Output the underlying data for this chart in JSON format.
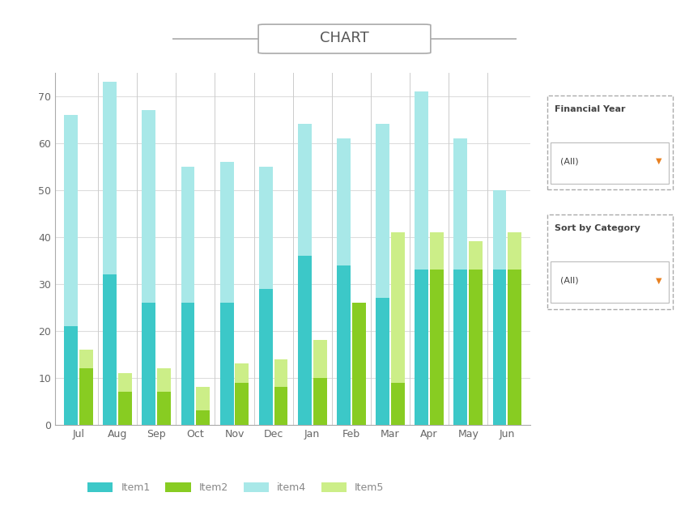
{
  "months": [
    "Jul",
    "Aug",
    "Sep",
    "Oct",
    "Nov",
    "Dec",
    "Jan",
    "Feb",
    "Mar",
    "Apr",
    "May",
    "Jun"
  ],
  "item1": [
    21,
    32,
    26,
    26,
    26,
    29,
    36,
    34,
    27,
    33,
    33,
    33
  ],
  "item4": [
    45,
    41,
    41,
    29,
    30,
    26,
    28,
    27,
    37,
    38,
    28,
    17
  ],
  "item2": [
    12,
    7,
    7,
    3,
    9,
    8,
    10,
    26,
    9,
    33,
    33,
    33
  ],
  "item5": [
    4,
    4,
    5,
    5,
    4,
    6,
    8,
    0,
    32,
    8,
    6,
    8
  ],
  "color_item1": "#3CC8C8",
  "color_item4": "#A8E8E8",
  "color_item2": "#88CC22",
  "color_item5": "#CCEE88",
  "title": "CHART",
  "ylabel_max": 75,
  "yticks": [
    0,
    10,
    20,
    30,
    40,
    50,
    60,
    70
  ],
  "legend_labels": [
    "Item1",
    "Item2",
    "item4",
    "Item5"
  ],
  "bg_color": "#FFFFFF",
  "grid_color": "#DDDDDD",
  "bar_width": 0.35
}
